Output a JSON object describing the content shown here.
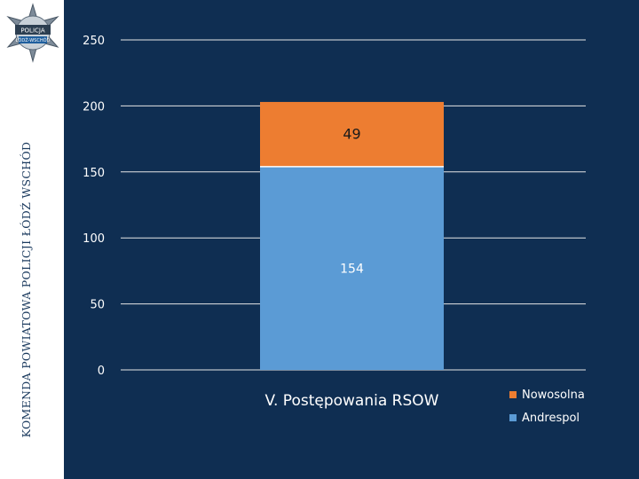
{
  "side_title": "KOMENDA POWIATOWA POLICJI ŁÓDŹ WSCHÓD",
  "badge": {
    "top_text": "POLICJA",
    "bottom_text": "ŁÓDŹ-WSCHÓD"
  },
  "colors": {
    "background": "#0f2e52",
    "andrespol": "#5b9bd5",
    "nowosolna": "#ed7d31",
    "gridline": "#e6e6e6",
    "text": "#ffffff"
  },
  "chart_data": {
    "type": "bar",
    "stacked": true,
    "categories": [
      "V. Postępowania RSOW"
    ],
    "series": [
      {
        "name": "Andrespol",
        "values": [
          154
        ]
      },
      {
        "name": "Nowosolna",
        "values": [
          49
        ]
      }
    ],
    "data_labels": [
      "154",
      "49"
    ],
    "ylim": [
      0,
      250
    ],
    "yticks": [
      "0",
      "50",
      "100",
      "150",
      "200",
      "250"
    ],
    "grid": true,
    "legend_position": "right",
    "legend": [
      "Nowosolna",
      "Andrespol"
    ]
  }
}
